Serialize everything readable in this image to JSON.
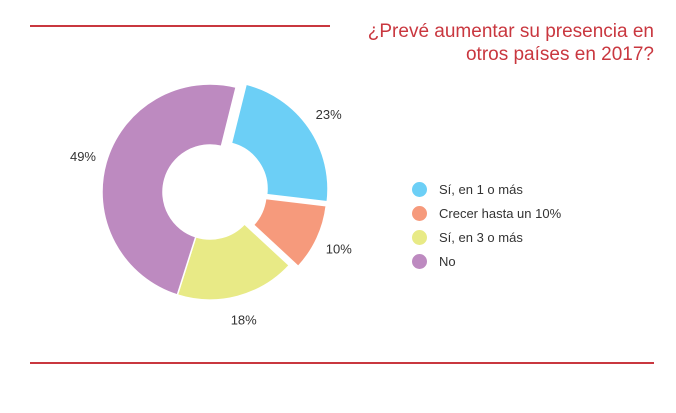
{
  "chart_data": {
    "type": "pie",
    "title_lines": [
      "¿Prevé aumentar su presencia en",
      "otros países en 2017?"
    ],
    "legend_position": "right",
    "slices": [
      {
        "label": "Sí, en 1 o más",
        "value": 23,
        "value_label": "23%",
        "color": "#6ccff6"
      },
      {
        "label": "Crecer hasta un 10%",
        "value": 10,
        "value_label": "10%",
        "color": "#f69a7c"
      },
      {
        "label": "Sí, en 3 o más",
        "value": 18,
        "value_label": "18%",
        "color": "#e8ea86"
      },
      {
        "label": "No",
        "value": 49,
        "value_label": "49%",
        "color": "#bd8ac0"
      }
    ]
  }
}
